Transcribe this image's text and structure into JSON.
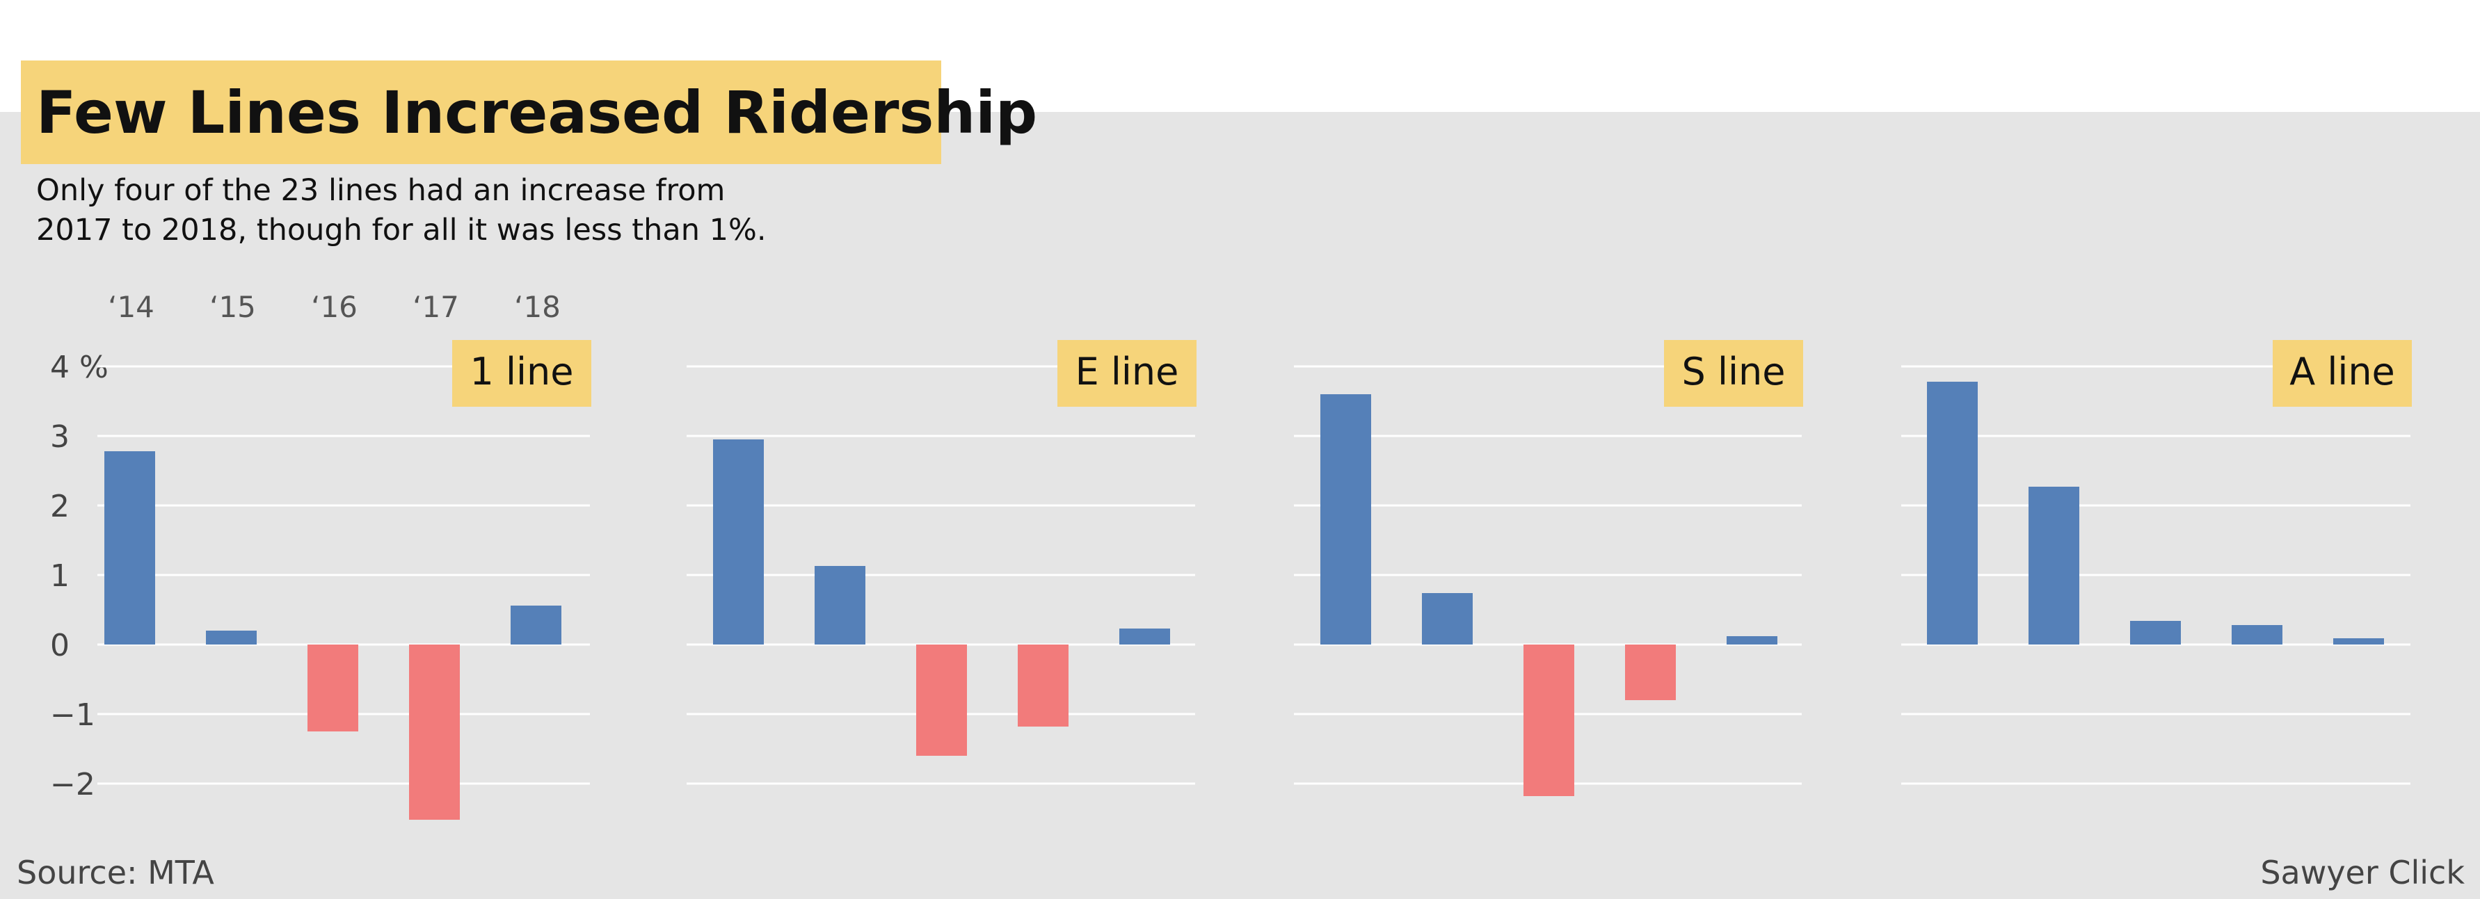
{
  "title": "Few Lines Increased Ridership",
  "subtitle_lines": [
    "Only four of the 23 lines had an increase from",
    "2017 to 2018, though for all it was less than 1%."
  ],
  "source": "Source: MTA",
  "credit": "Sawyer Click",
  "colors": {
    "positive": "#5580b8",
    "negative": "#f27b7b",
    "label_box": "#f6d47a",
    "background": "#e5e5e5",
    "grid": "#ffffff"
  },
  "chart_data": {
    "type": "bar",
    "categories": [
      "‘14",
      "‘15",
      "‘16",
      "‘17",
      "‘18"
    ],
    "ylim": [
      -2.5,
      4
    ],
    "y_ticks": [
      {
        "value": 4,
        "label": "4 %"
      },
      {
        "value": 3,
        "label": "3"
      },
      {
        "value": 2,
        "label": "2"
      },
      {
        "value": 1,
        "label": "1"
      },
      {
        "value": 0,
        "label": "0"
      },
      {
        "value": -1,
        "label": "−1"
      },
      {
        "value": -2,
        "label": "−2"
      }
    ],
    "grid": true,
    "series": [
      {
        "name": "1 line",
        "values": [
          2.78,
          0.2,
          -1.25,
          -2.52,
          0.56
        ]
      },
      {
        "name": "E line",
        "values": [
          2.95,
          1.13,
          -1.6,
          -1.18,
          0.23
        ]
      },
      {
        "name": "S line",
        "values": [
          3.6,
          0.74,
          -2.18,
          -0.8,
          0.12
        ]
      },
      {
        "name": "A line",
        "values": [
          3.78,
          2.27,
          0.34,
          0.28,
          0.09
        ]
      }
    ]
  }
}
